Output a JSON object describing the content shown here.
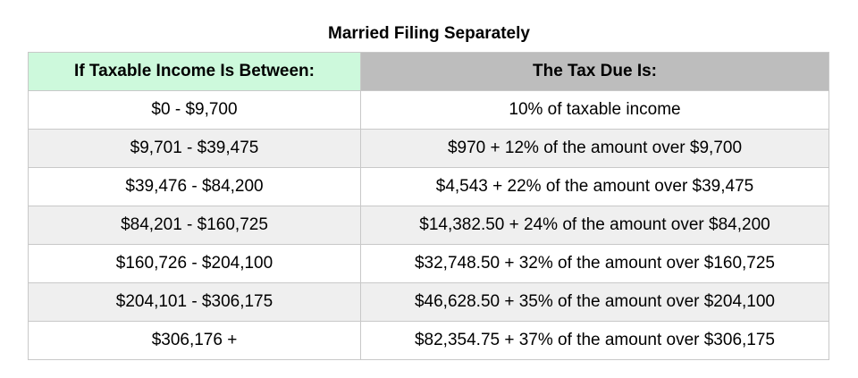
{
  "title": "Married Filing Separately",
  "headers": [
    "If Taxable Income Is Between:",
    "The Tax Due Is:"
  ],
  "colors": {
    "header_left": "#cdf9dc",
    "header_right": "#bdbdbd",
    "stripe": "#efefef"
  },
  "rows": [
    {
      "range": "$0 - $9,700",
      "tax": "10% of taxable income"
    },
    {
      "range": "$9,701 - $39,475",
      "tax": "$970 + 12% of the amount over $9,700"
    },
    {
      "range": "$39,476 - $84,200",
      "tax": "$4,543 + 22% of the amount over $39,475"
    },
    {
      "range": "$84,201 - $160,725",
      "tax": "$14,382.50 + 24% of the amount over $84,200"
    },
    {
      "range": "$160,726 - $204,100",
      "tax": "$32,748.50 + 32% of the amount over $160,725"
    },
    {
      "range": "$204,101 - $306,175",
      "tax": "$46,628.50 + 35% of the amount over $204,100"
    },
    {
      "range": "$306,176 +",
      "tax": "$82,354.75 + 37% of the amount over $306,175"
    }
  ]
}
